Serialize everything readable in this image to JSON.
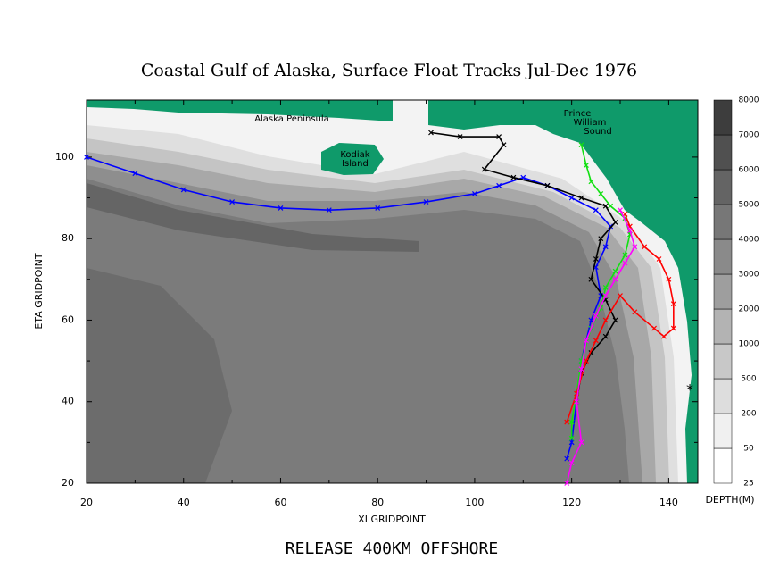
{
  "chart_data": {
    "type": "line",
    "title": "Coastal Gulf of Alaska, Surface Float Tracks Jul-Dec 1976",
    "subtitle": "RELEASE 400KM OFFSHORE",
    "x_label": "XI GRIDPOINT",
    "y_label": "ETA GRIDPOINT",
    "xlim": [
      20,
      146
    ],
    "ylim": [
      20,
      114
    ],
    "xticks": [
      20,
      40,
      60,
      80,
      100,
      120,
      140
    ],
    "yticks": [
      20,
      40,
      60,
      80,
      100
    ],
    "annotations": [
      [
        "Alaska Peninsula"
      ],
      [
        "Kodiak",
        "Island"
      ],
      [
        "Prince",
        "William",
        "Sound"
      ],
      [
        "*"
      ]
    ],
    "colorbar": {
      "label": "DEPTH(M)",
      "levels": [
        25,
        50,
        200,
        500,
        1000,
        2000,
        3000,
        4000,
        5000,
        6000,
        7000,
        8000
      ],
      "colors": [
        "#ffffff",
        "#f0f0f0",
        "#dddddd",
        "#c8c8c8",
        "#b3b3b3",
        "#9e9e9e",
        "#8a8a8a",
        "#777777",
        "#646464",
        "#505050",
        "#3d3d3d"
      ]
    },
    "land_color": "#0f9a6a",
    "series": [
      {
        "color": "#0000ff",
        "x": [
          20,
          30,
          40,
          50,
          60,
          70,
          80,
          90,
          100,
          105,
          110,
          115,
          120,
          125,
          128,
          127,
          125,
          126,
          124,
          122,
          121,
          120,
          119
        ],
        "y": [
          100,
          96,
          92,
          89,
          87.5,
          87,
          87.5,
          89,
          91,
          93,
          95,
          93,
          90,
          87,
          83,
          78,
          73,
          66,
          60,
          50,
          40,
          30,
          26
        ]
      },
      {
        "color": "#000000",
        "x": [
          91,
          97,
          105,
          106,
          102,
          108,
          115,
          122,
          127,
          129,
          126,
          125,
          124,
          127,
          129,
          127,
          124,
          122,
          121
        ],
        "y": [
          106,
          105,
          105,
          103,
          97,
          95,
          93,
          90,
          88,
          84,
          80,
          75,
          70,
          65,
          60,
          56,
          52,
          47,
          40
        ]
      },
      {
        "color": "#11e011",
        "x": [
          122,
          123,
          124,
          126,
          128,
          131,
          132,
          131,
          129,
          127,
          126,
          124,
          122,
          121,
          120,
          120
        ],
        "y": [
          103,
          98,
          94,
          91,
          88,
          85,
          81,
          76,
          72,
          68,
          63,
          58,
          50,
          42,
          35,
          31
        ]
      },
      {
        "color": "#ff0000",
        "x": [
          131,
          132,
          135,
          138,
          140,
          141,
          141,
          139,
          137,
          133,
          130,
          127,
          125,
          123,
          121,
          119
        ],
        "y": [
          86,
          83,
          78,
          75,
          70,
          64,
          58,
          56,
          58,
          62,
          66,
          60,
          55,
          50,
          42,
          35
        ]
      },
      {
        "color": "#ff00ff",
        "x": [
          130,
          132,
          133,
          131,
          129,
          127,
          125,
          123,
          122,
          121,
          122,
          120,
          119
        ],
        "y": [
          87,
          82,
          78,
          74,
          70,
          66,
          61,
          55,
          48,
          40,
          30,
          25,
          20
        ]
      }
    ]
  }
}
